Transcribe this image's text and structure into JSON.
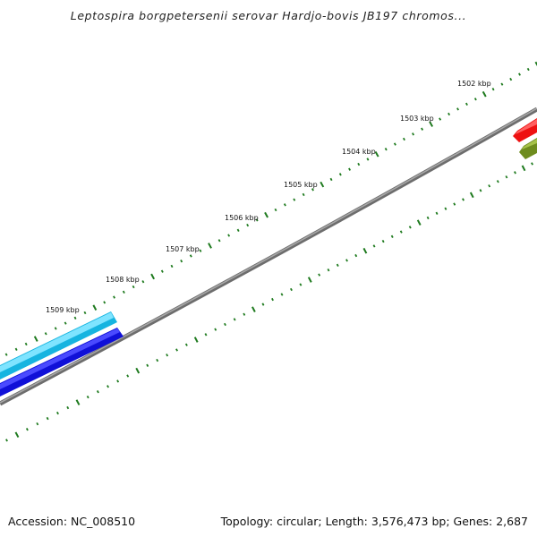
{
  "map": {
    "title": "Leptospira borgpetersenii serovar Hardjo-bovis JB197 chromos...",
    "accession": "Accession: NC_008510",
    "summary": "Topology: circular; Length: 3,576,473 bp; Genes: 2,687"
  },
  "scale": {
    "tick_labels": [
      "1502 kbp",
      "1503 kbp",
      "1504 kbp",
      "1505 kbp",
      "1506 kbp",
      "1507 kbp",
      "1508 kbp",
      "1509 kbp"
    ]
  },
  "colors": {
    "backbone": "#808080",
    "tick_marks": "#1e7a1e",
    "feature_cyan": "#1ec8f0",
    "feature_blue": "#1414e6",
    "feature_red": "#ee1111",
    "feature_olive": "#6e8c1e"
  }
}
